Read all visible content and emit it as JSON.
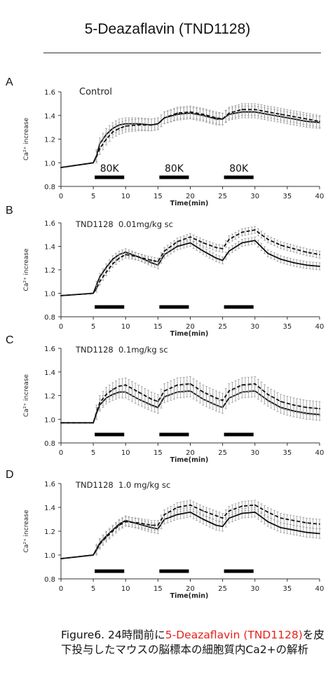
{
  "title": "5-Deazaflavin (TND1128)",
  "colors": {
    "accent": "#e2231a",
    "line": "#111111",
    "error": "#9a9a9a"
  },
  "caption": {
    "prefix": "Figure6. 24時間前に",
    "highlight": "5-Deazaflavin (TND1128)",
    "suffix": "を皮下投与したマウスの脳標本の細胞質内Ca2+の解析"
  },
  "chart_data": [
    {
      "type": "line",
      "panel": "A",
      "annotation": "Control",
      "xlabel": "Time(min)",
      "ylabel": "Ca²⁺ increase",
      "xlim": [
        0,
        40
      ],
      "ylim": [
        0.8,
        1.6
      ],
      "xticks": [
        0,
        5,
        10,
        15,
        20,
        25,
        30,
        35,
        40
      ],
      "yticks": [
        "0.8",
        "1.0",
        "1.2",
        "1.4",
        "1.6"
      ],
      "stimulus_bars": [
        [
          5,
          10
        ],
        [
          15,
          20
        ],
        [
          25,
          30
        ]
      ],
      "stimulus_labels": [
        "80K",
        "80K",
        "80K"
      ],
      "x": [
        0,
        5,
        5.5,
        6,
        7,
        8,
        9,
        10,
        12,
        14,
        15,
        16,
        18,
        20,
        22,
        24,
        25,
        26,
        28,
        30,
        32,
        34,
        36,
        38,
        40
      ],
      "series": [
        {
          "style": "solid",
          "error": 0.05,
          "values": [
            0.96,
            1.0,
            1.06,
            1.16,
            1.24,
            1.29,
            1.32,
            1.33,
            1.33,
            1.32,
            1.33,
            1.38,
            1.41,
            1.42,
            1.4,
            1.37,
            1.37,
            1.41,
            1.43,
            1.43,
            1.41,
            1.39,
            1.37,
            1.35,
            1.34
          ]
        },
        {
          "style": "dashed",
          "error": 0.05,
          "values": [
            0.96,
            1.0,
            1.05,
            1.12,
            1.2,
            1.26,
            1.29,
            1.31,
            1.32,
            1.32,
            1.33,
            1.38,
            1.42,
            1.43,
            1.41,
            1.38,
            1.37,
            1.42,
            1.45,
            1.45,
            1.43,
            1.41,
            1.39,
            1.37,
            1.35
          ]
        }
      ]
    },
    {
      "type": "line",
      "panel": "B",
      "annotation": "TND1128  0.01mg/kg sc",
      "xlabel": "Time(min)",
      "ylabel": "Ca²⁺ increase",
      "xlim": [
        0,
        40
      ],
      "ylim": [
        0.8,
        1.6
      ],
      "xticks": [
        0,
        5,
        10,
        15,
        20,
        25,
        30,
        35,
        40
      ],
      "yticks": [
        "0.8",
        "1.0",
        "1.2",
        "1.4",
        "1.6"
      ],
      "stimulus_bars": [
        [
          5,
          10
        ],
        [
          15,
          20
        ],
        [
          25,
          30
        ]
      ],
      "stimulus_labels": [],
      "x": [
        0,
        5,
        5.5,
        6,
        7,
        8,
        9,
        10,
        12,
        14,
        15,
        16,
        18,
        20,
        22,
        24,
        25,
        26,
        28,
        30,
        32,
        34,
        36,
        38,
        40
      ],
      "series": [
        {
          "style": "solid",
          "error": 0.03,
          "values": [
            0.98,
            1.0,
            1.07,
            1.14,
            1.22,
            1.29,
            1.33,
            1.35,
            1.31,
            1.26,
            1.24,
            1.33,
            1.4,
            1.43,
            1.36,
            1.3,
            1.28,
            1.36,
            1.43,
            1.45,
            1.34,
            1.29,
            1.26,
            1.24,
            1.23
          ]
        },
        {
          "style": "dashed",
          "error": 0.03,
          "values": [
            0.98,
            1.0,
            1.04,
            1.1,
            1.18,
            1.25,
            1.3,
            1.33,
            1.31,
            1.28,
            1.27,
            1.36,
            1.44,
            1.48,
            1.43,
            1.39,
            1.38,
            1.46,
            1.52,
            1.54,
            1.46,
            1.41,
            1.38,
            1.35,
            1.33
          ]
        }
      ]
    },
    {
      "type": "line",
      "panel": "C",
      "annotation": "TND1128  0.1mg/kg sc",
      "xlabel": "Time(min)",
      "ylabel": "Ca²⁺ increase",
      "xlim": [
        0,
        40
      ],
      "ylim": [
        0.8,
        1.6
      ],
      "xticks": [
        0,
        5,
        10,
        15,
        20,
        25,
        30,
        35,
        40
      ],
      "yticks": [
        "0.8",
        "1.0",
        "1.2",
        "1.4",
        "1.6"
      ],
      "stimulus_bars": [
        [
          5,
          10
        ],
        [
          15,
          20
        ],
        [
          25,
          30
        ]
      ],
      "stimulus_labels": [],
      "x": [
        0,
        5,
        5.5,
        6,
        7,
        8,
        9,
        10,
        12,
        14,
        15,
        16,
        18,
        20,
        22,
        24,
        25,
        26,
        28,
        30,
        32,
        34,
        36,
        38,
        40
      ],
      "series": [
        {
          "style": "solid",
          "error": 0.05,
          "values": [
            0.97,
            0.97,
            1.05,
            1.12,
            1.18,
            1.21,
            1.23,
            1.23,
            1.17,
            1.12,
            1.1,
            1.19,
            1.23,
            1.24,
            1.17,
            1.12,
            1.1,
            1.18,
            1.23,
            1.24,
            1.16,
            1.1,
            1.07,
            1.05,
            1.04
          ]
        },
        {
          "style": "dashed",
          "error": 0.06,
          "values": [
            0.97,
            0.97,
            1.06,
            1.14,
            1.21,
            1.25,
            1.28,
            1.29,
            1.23,
            1.17,
            1.15,
            1.24,
            1.29,
            1.3,
            1.23,
            1.18,
            1.16,
            1.24,
            1.29,
            1.3,
            1.21,
            1.15,
            1.12,
            1.1,
            1.09
          ]
        }
      ]
    },
    {
      "type": "line",
      "panel": "D",
      "annotation": "TND1128  1.0 mg/kg sc",
      "xlabel": "Time(min)",
      "ylabel": "Ca²⁺ increase",
      "xlim": [
        0,
        40
      ],
      "ylim": [
        0.8,
        1.6
      ],
      "xticks": [
        0,
        5,
        10,
        15,
        20,
        25,
        30,
        35,
        40
      ],
      "yticks": [
        "0.8",
        "1.0",
        "1.2",
        "1.4",
        "1.6"
      ],
      "stimulus_bars": [
        [
          5,
          10
        ],
        [
          15,
          20
        ],
        [
          25,
          30
        ]
      ],
      "stimulus_labels": [],
      "x": [
        0,
        5,
        5.5,
        6,
        7,
        8,
        9,
        10,
        12,
        14,
        15,
        16,
        18,
        20,
        22,
        24,
        25,
        26,
        28,
        30,
        32,
        34,
        36,
        38,
        40
      ],
      "series": [
        {
          "style": "solid",
          "error": 0.04,
          "values": [
            0.97,
            1.0,
            1.05,
            1.1,
            1.16,
            1.21,
            1.26,
            1.29,
            1.26,
            1.23,
            1.22,
            1.3,
            1.34,
            1.36,
            1.3,
            1.25,
            1.24,
            1.31,
            1.35,
            1.36,
            1.28,
            1.23,
            1.21,
            1.19,
            1.18
          ]
        },
        {
          "style": "dashed",
          "error": 0.04,
          "values": [
            0.97,
            1.0,
            1.04,
            1.09,
            1.15,
            1.2,
            1.25,
            1.28,
            1.27,
            1.25,
            1.25,
            1.34,
            1.4,
            1.42,
            1.37,
            1.33,
            1.31,
            1.37,
            1.41,
            1.42,
            1.36,
            1.31,
            1.29,
            1.27,
            1.26
          ]
        }
      ]
    }
  ]
}
